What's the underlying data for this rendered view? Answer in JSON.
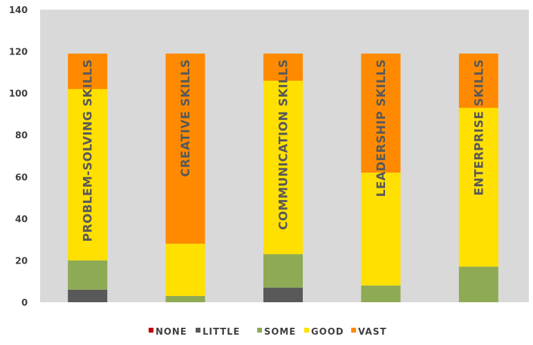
{
  "chart_data": {
    "type": "bar",
    "stacked": true,
    "categories": [
      "PROBLEM-SOLVING SKILLS",
      "CREATIVE SKILLS",
      "COMMUNICATION SKILLS",
      "LEADERSHIP SKILLS",
      "ENTERPRISE SKILLS"
    ],
    "series": [
      {
        "name": "NONE",
        "color": "#c00000",
        "values": [
          0,
          0,
          0,
          0,
          0
        ]
      },
      {
        "name": "LITTLE",
        "color": "#595959",
        "values": [
          6,
          0,
          7,
          0,
          0
        ]
      },
      {
        "name": "SOME",
        "color": "#8faa54",
        "values": [
          14,
          3,
          16,
          8,
          17
        ]
      },
      {
        "name": "GOOD",
        "color": "#ffe000",
        "values": [
          82,
          25,
          83,
          54,
          76
        ]
      },
      {
        "name": "VAST",
        "color": "#ff8a00",
        "values": [
          17,
          91,
          13,
          57,
          26
        ]
      }
    ],
    "yticks": [
      0,
      20,
      40,
      60,
      80,
      100,
      120,
      140
    ],
    "ylim": [
      0,
      140
    ],
    "title": "",
    "xlabel": "",
    "ylabel": "",
    "grid": false,
    "legend_position": "bottom",
    "plot_background": "#d9d9d9",
    "category_label_color": "#595959"
  }
}
